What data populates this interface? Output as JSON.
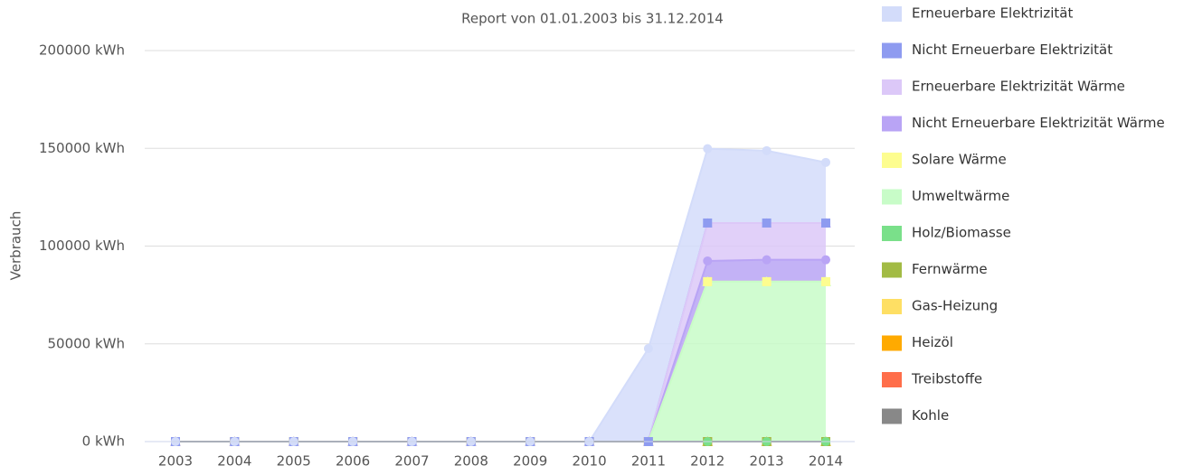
{
  "chart_data": {
    "type": "area",
    "stacked": true,
    "title": "Report von 01.01.2003 bis 31.12.2014",
    "ylabel": "Verbrauch",
    "categories": [
      "2003",
      "2004",
      "2005",
      "2006",
      "2007",
      "2008",
      "2009",
      "2010",
      "2011",
      "2012",
      "2013",
      "2014"
    ],
    "ylim": [
      0,
      200000
    ],
    "yticks": [
      {
        "value": 0,
        "label": "0 kWh"
      },
      {
        "value": 50000,
        "label": "50000 kWh"
      },
      {
        "value": 100000,
        "label": "100000 kWh"
      },
      {
        "value": 150000,
        "label": "150000 kWh"
      },
      {
        "value": 200000,
        "label": "200000 kWh"
      }
    ],
    "grid": true,
    "legend": "right",
    "series": [
      {
        "name": "Erneuerbare Elektrizität",
        "color": "#d3dcfa",
        "values": [
          0,
          0,
          0,
          0,
          0,
          0,
          0,
          0,
          47600,
          38000,
          37000,
          31000
        ]
      },
      {
        "name": "Nicht Erneuerbare Elektrizität",
        "color": "#8e9bf0",
        "values": [
          0,
          0,
          0,
          0,
          0,
          0,
          0,
          0,
          0,
          0,
          0,
          0
        ]
      },
      {
        "name": "Erneuerbare Elektrizität Wärme",
        "color": "#dcc8f8",
        "values": [
          0,
          0,
          0,
          0,
          0,
          0,
          0,
          0,
          0,
          19400,
          18800,
          18800
        ]
      },
      {
        "name": "Nicht Erneuerbare Elektrizität Wärme",
        "color": "#b9a4f5",
        "values": [
          0,
          0,
          0,
          0,
          0,
          0,
          0,
          0,
          0,
          10600,
          11200,
          11200
        ]
      },
      {
        "name": "Solare Wärme",
        "color": "#fdfd8f",
        "values": [
          0,
          0,
          0,
          0,
          0,
          0,
          0,
          0,
          0,
          0,
          0,
          0
        ]
      },
      {
        "name": "Umweltwärme",
        "color": "#c8fcc8",
        "values": [
          0,
          0,
          0,
          0,
          0,
          0,
          0,
          0,
          0,
          81800,
          81800,
          81800
        ]
      },
      {
        "name": "Holz/Biomasse",
        "color": "#7ae08a",
        "values": [
          0,
          0,
          0,
          0,
          0,
          0,
          0,
          0,
          0,
          0,
          0,
          0
        ]
      },
      {
        "name": "Fernwärme",
        "color": "#a2bb44",
        "values": [
          0,
          0,
          0,
          0,
          0,
          0,
          0,
          0,
          0,
          0,
          0,
          0
        ]
      },
      {
        "name": "Gas-Heizung",
        "color": "#fedf64",
        "values": [
          0,
          0,
          0,
          0,
          0,
          0,
          0,
          0,
          0,
          0,
          0,
          0
        ]
      },
      {
        "name": "Heizöl",
        "color": "#ffaa00",
        "values": [
          0,
          0,
          0,
          0,
          0,
          0,
          0,
          0,
          0,
          0,
          0,
          0
        ]
      },
      {
        "name": "Treibstoffe",
        "color": "#ff6e4a",
        "values": [
          0,
          0,
          0,
          0,
          0,
          0,
          0,
          0,
          0,
          0,
          0,
          0
        ]
      },
      {
        "name": "Kohle",
        "color": "#888888",
        "values": [
          0,
          0,
          0,
          0,
          0,
          0,
          0,
          0,
          0,
          0,
          0,
          0
        ]
      }
    ]
  }
}
